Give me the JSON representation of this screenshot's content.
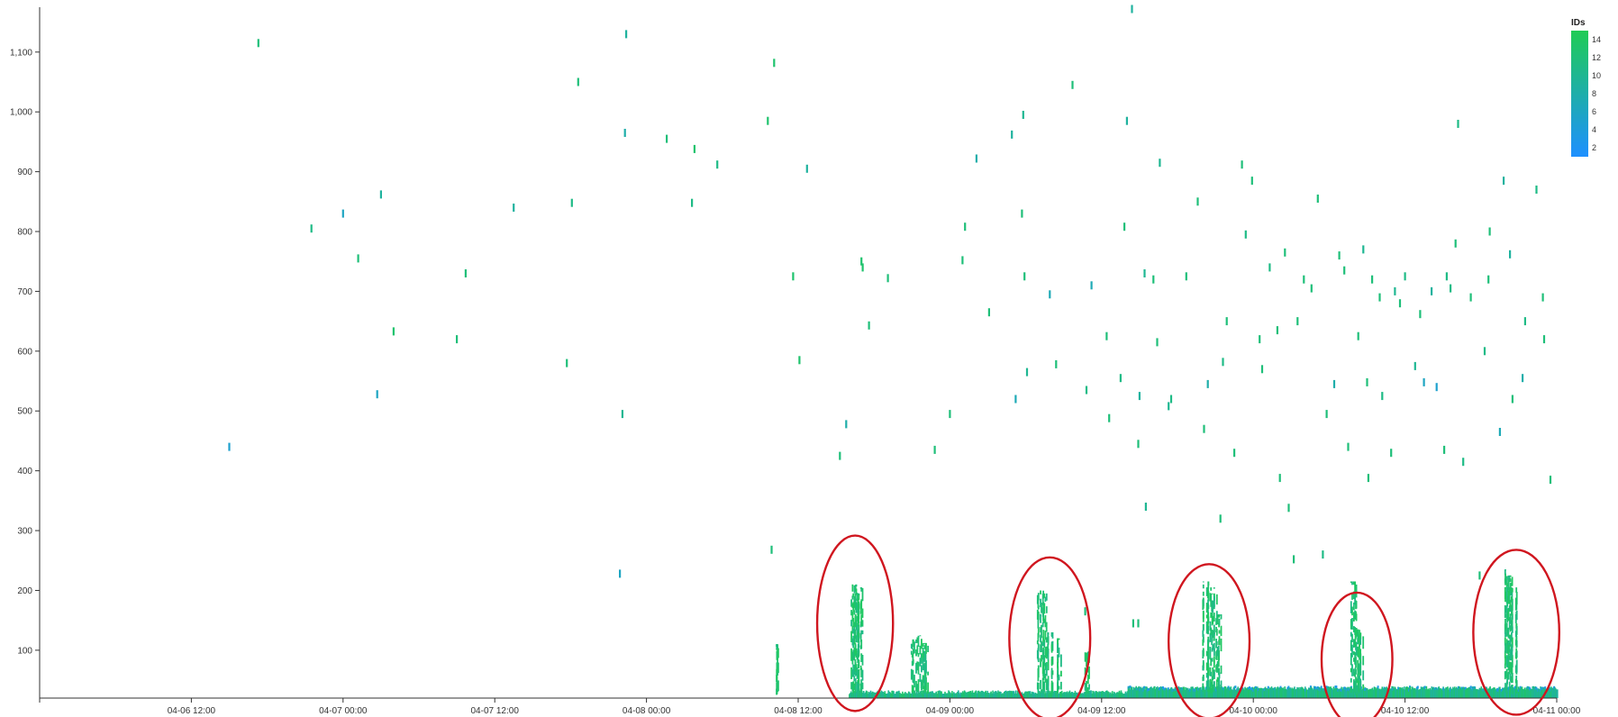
{
  "chart_data": {
    "type": "scatter",
    "title": "",
    "xlabel": "",
    "ylabel": "",
    "x_domain": [
      "04-06 00:00",
      "04-11 00:00"
    ],
    "ylim": [
      20,
      1175
    ],
    "x_ticks": [
      {
        "label": "04-06 12:00",
        "hour": 12
      },
      {
        "label": "04-07 00:00",
        "hour": 24
      },
      {
        "label": "04-07 12:00",
        "hour": 36
      },
      {
        "label": "04-08 00:00",
        "hour": 48
      },
      {
        "label": "04-08 12:00",
        "hour": 60
      },
      {
        "label": "04-09 00:00",
        "hour": 72
      },
      {
        "label": "04-09 12:00",
        "hour": 84
      },
      {
        "label": "04-10 00:00",
        "hour": 96
      },
      {
        "label": "04-10 12:00",
        "hour": 108
      },
      {
        "label": "04-11 00:00",
        "hour": 120
      }
    ],
    "y_ticks": [
      {
        "label": "100",
        "value": 100
      },
      {
        "label": "200",
        "value": 200
      },
      {
        "label": "300",
        "value": 300
      },
      {
        "label": "400",
        "value": 400
      },
      {
        "label": "500",
        "value": 500
      },
      {
        "label": "600",
        "value": 600
      },
      {
        "label": "700",
        "value": 700
      },
      {
        "label": "800",
        "value": 800
      },
      {
        "label": "900",
        "value": 900
      },
      {
        "label": "1,000",
        "value": 1000
      },
      {
        "label": "1,100",
        "value": 1100
      }
    ],
    "color_legend": {
      "title": "IDs",
      "min": 1,
      "max": 15,
      "ticks": [
        2,
        4,
        6,
        8,
        10,
        12,
        14
      ],
      "low_color": "#1e90ff",
      "high_color": "#1fcc55",
      "placement": "top-right"
    },
    "points": [
      [
        15.0,
        440,
        5
      ],
      [
        17.3,
        1115,
        12
      ],
      [
        21.5,
        805,
        11
      ],
      [
        24.0,
        830,
        6
      ],
      [
        25.2,
        755,
        12
      ],
      [
        26.7,
        528,
        6
      ],
      [
        27.0,
        862,
        9
      ],
      [
        28.0,
        633,
        13
      ],
      [
        33.0,
        620,
        12
      ],
      [
        33.7,
        730,
        12
      ],
      [
        37.5,
        840,
        9
      ],
      [
        41.7,
        580,
        12
      ],
      [
        42.1,
        848,
        11
      ],
      [
        42.6,
        1050,
        12
      ],
      [
        45.9,
        228,
        6
      ],
      [
        46.1,
        495,
        10
      ],
      [
        46.3,
        965,
        8
      ],
      [
        46.4,
        1130,
        9
      ],
      [
        49.6,
        955,
        12
      ],
      [
        51.6,
        848,
        11
      ],
      [
        51.8,
        938,
        13
      ],
      [
        53.6,
        912,
        11
      ],
      [
        57.6,
        985,
        13
      ],
      [
        57.9,
        268,
        12
      ],
      [
        58.1,
        1082,
        13
      ],
      [
        59.6,
        725,
        13
      ],
      [
        60.1,
        585,
        13
      ],
      [
        60.7,
        905,
        9
      ],
      [
        63.3,
        425,
        12
      ],
      [
        63.8,
        478,
        8
      ],
      [
        65.0,
        750,
        13
      ],
      [
        65.1,
        740,
        13
      ],
      [
        65.6,
        643,
        12
      ],
      [
        67.1,
        722,
        12
      ],
      [
        70.8,
        435,
        12
      ],
      [
        72.0,
        495,
        12
      ],
      [
        73.0,
        752,
        12
      ],
      [
        73.2,
        808,
        12
      ],
      [
        74.1,
        922,
        8
      ],
      [
        75.1,
        665,
        12
      ],
      [
        76.9,
        962,
        9
      ],
      [
        77.2,
        520,
        7
      ],
      [
        77.7,
        830,
        12
      ],
      [
        77.8,
        995,
        10
      ],
      [
        77.9,
        725,
        12
      ],
      [
        78.1,
        565,
        10
      ],
      [
        79.9,
        695,
        7
      ],
      [
        80.4,
        578,
        12
      ],
      [
        81.7,
        1045,
        12
      ],
      [
        82.8,
        535,
        11
      ],
      [
        83.2,
        710,
        7
      ],
      [
        84.4,
        625,
        12
      ],
      [
        84.6,
        488,
        12
      ],
      [
        85.5,
        555,
        11
      ],
      [
        85.8,
        808,
        12
      ],
      [
        86.0,
        985,
        9
      ],
      [
        86.4,
        1172,
        9
      ],
      [
        86.9,
        445,
        12
      ],
      [
        87.0,
        525,
        9
      ],
      [
        87.5,
        340,
        10
      ],
      [
        87.4,
        730,
        10
      ],
      [
        88.1,
        720,
        12
      ],
      [
        88.6,
        915,
        10
      ],
      [
        88.4,
        615,
        12
      ],
      [
        89.3,
        508,
        10
      ],
      [
        89.5,
        520,
        11
      ],
      [
        90.7,
        725,
        12
      ],
      [
        91.6,
        850,
        12
      ],
      [
        92.1,
        470,
        12
      ],
      [
        92.4,
        545,
        8
      ],
      [
        93.6,
        582,
        11
      ],
      [
        93.4,
        320,
        12
      ],
      [
        93.9,
        650,
        12
      ],
      [
        94.5,
        430,
        12
      ],
      [
        95.1,
        912,
        12
      ],
      [
        95.4,
        795,
        11
      ],
      [
        95.9,
        885,
        12
      ],
      [
        96.5,
        620,
        12
      ],
      [
        96.7,
        570,
        12
      ],
      [
        97.3,
        740,
        11
      ],
      [
        97.9,
        635,
        12
      ],
      [
        98.1,
        388,
        12
      ],
      [
        98.5,
        765,
        12
      ],
      [
        98.8,
        338,
        12
      ],
      [
        99.2,
        252,
        12
      ],
      [
        99.5,
        650,
        12
      ],
      [
        100.0,
        720,
        12
      ],
      [
        100.6,
        705,
        12
      ],
      [
        101.1,
        855,
        12
      ],
      [
        101.5,
        260,
        11
      ],
      [
        101.8,
        495,
        12
      ],
      [
        102.4,
        545,
        8
      ],
      [
        102.8,
        760,
        12
      ],
      [
        103.2,
        735,
        12
      ],
      [
        103.5,
        440,
        12
      ],
      [
        104.3,
        625,
        12
      ],
      [
        104.7,
        770,
        10
      ],
      [
        105.0,
        548,
        12
      ],
      [
        105.1,
        388,
        12
      ],
      [
        105.4,
        720,
        12
      ],
      [
        106.0,
        690,
        12
      ],
      [
        106.2,
        525,
        11
      ],
      [
        106.9,
        430,
        12
      ],
      [
        107.2,
        700,
        10
      ],
      [
        107.6,
        680,
        12
      ],
      [
        108.0,
        725,
        11
      ],
      [
        108.8,
        575,
        10
      ],
      [
        109.2,
        662,
        12
      ],
      [
        109.5,
        548,
        6
      ],
      [
        110.1,
        700,
        9
      ],
      [
        110.5,
        540,
        5
      ],
      [
        111.1,
        435,
        12
      ],
      [
        111.3,
        725,
        11
      ],
      [
        111.6,
        705,
        11
      ],
      [
        112.2,
        980,
        11
      ],
      [
        112.0,
        780,
        12
      ],
      [
        112.6,
        415,
        11
      ],
      [
        113.2,
        690,
        12
      ],
      [
        113.9,
        225,
        12
      ],
      [
        114.3,
        600,
        11
      ],
      [
        114.6,
        720,
        12
      ],
      [
        114.7,
        800,
        12
      ],
      [
        115.5,
        465,
        7
      ],
      [
        115.8,
        885,
        9
      ],
      [
        116.5,
        520,
        12
      ],
      [
        116.3,
        762,
        9
      ],
      [
        117.3,
        555,
        8
      ],
      [
        117.5,
        650,
        11
      ],
      [
        118.4,
        870,
        11
      ],
      [
        118.9,
        690,
        12
      ],
      [
        119.0,
        620,
        12
      ],
      [
        119.5,
        385,
        12
      ],
      [
        82.7,
        165,
        12
      ],
      [
        86.5,
        145,
        12
      ],
      [
        86.9,
        145,
        12
      ]
    ],
    "baseline": {
      "start_hour": 64.0,
      "split_hour": 86.0,
      "level_before": 30,
      "level_after": 37
    },
    "spikes": [
      {
        "hour": 58.4,
        "max": 110
      },
      {
        "hour": 64.3,
        "max": 210
      },
      {
        "hour": 64.5,
        "max": 195
      },
      {
        "hour": 64.8,
        "max": 205
      },
      {
        "hour": 69.1,
        "max": 118
      },
      {
        "hour": 69.6,
        "max": 125
      },
      {
        "hour": 70.0,
        "max": 112
      },
      {
        "hour": 79.1,
        "max": 200
      },
      {
        "hour": 79.5,
        "max": 195
      },
      {
        "hour": 79.9,
        "max": 130
      },
      {
        "hour": 80.6,
        "max": 120
      },
      {
        "hour": 82.7,
        "max": 98
      },
      {
        "hour": 92.2,
        "max": 215
      },
      {
        "hour": 92.6,
        "max": 205
      },
      {
        "hour": 92.9,
        "max": 195
      },
      {
        "hour": 93.2,
        "max": 160
      },
      {
        "hour": 103.9,
        "max": 215
      },
      {
        "hour": 104.2,
        "max": 135
      },
      {
        "hour": 104.4,
        "max": 125
      },
      {
        "hour": 115.9,
        "max": 235
      },
      {
        "hour": 116.3,
        "max": 225
      },
      {
        "hour": 116.6,
        "max": 205
      }
    ],
    "annotations": [
      {
        "label": "",
        "cx_hour": 64.5,
        "cy_value": 145,
        "rx_hours": 3.0,
        "ry_values": 282
      },
      {
        "label": "",
        "cx_hour": 79.9,
        "cy_value": 120,
        "rx_hours": 3.2,
        "ry_values": 260
      },
      {
        "label": "",
        "cx_hour": 92.5,
        "cy_value": 115,
        "rx_hours": 3.2,
        "ry_values": 248
      },
      {
        "label": "",
        "cx_hour": 104.2,
        "cy_value": 85,
        "rx_hours": 2.8,
        "ry_values": 214
      },
      {
        "label": "",
        "cx_hour": 116.8,
        "cy_value": 130,
        "rx_hours": 3.4,
        "ry_values": 265
      }
    ]
  }
}
